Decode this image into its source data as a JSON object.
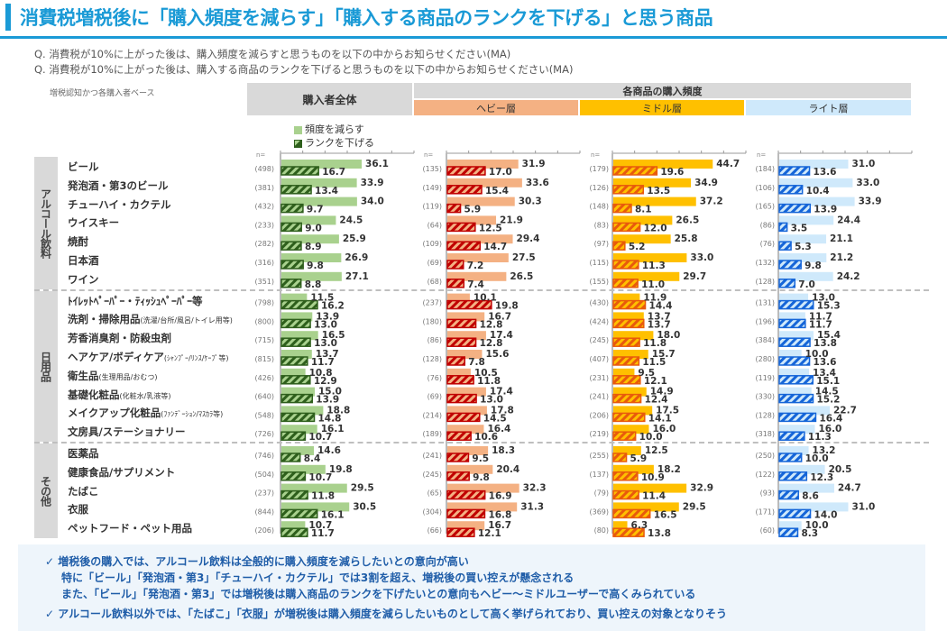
{
  "header": {
    "title": "消費税増税後に「購入頻度を減らす」「購入する商品のランクを下げる」と思う商品",
    "question1": "Q. 消費税が10%に上がった後は、購入頻度を減らすと思うものを以下の中からお知らせください(MA)",
    "question2": "Q. 消費税が10%に上がった後は、購入する商品のランクを下げると思うものを以下の中からお知らせください(MA)",
    "base_note": "増税認知かつ各購入者ベース",
    "overall_header": "購入者全体",
    "freq_header": "各商品の購入頻度",
    "heavy_header": "ヘビー層",
    "middle_header": "ミドル層",
    "light_header": "ライト層",
    "n_label": "n="
  },
  "legend": {
    "freq": "頻度を減らす",
    "rank": "ランクを下げる"
  },
  "sections": [
    {
      "label": "アルコール飲料",
      "start": 0,
      "count": 7
    },
    {
      "label": "日用品",
      "start": 7,
      "count": 8
    },
    {
      "label": "その他",
      "start": 15,
      "count": 5
    }
  ],
  "colors": {
    "title": "#1a9ad6",
    "overall_freq": "#a9d18e",
    "overall_rank": "#2e5f1c",
    "heavy_freq": "#f4b183",
    "heavy_rank": "#c00000",
    "middle_freq": "#ffc000",
    "middle_rank": "#e85a0c",
    "light_freq": "#cfe9fb",
    "light_rank": "#1565d8"
  },
  "chart_data": {
    "type": "bar",
    "title": "消費税増税後に「購入頻度を減らす」「購入する商品のランクを下げる」と思う商品",
    "xlim": [
      0,
      60
    ],
    "xticks": [
      0,
      10,
      20,
      30,
      40,
      50,
      60
    ],
    "unit": "%",
    "categories": [
      "ビール",
      "発泡酒・第3のビール",
      "チューハイ・カクテル",
      "ウイスキー",
      "焼酎",
      "日本酒",
      "ワイン",
      "トイレットペーパー・ティッシュペーパー等",
      "洗剤・掃除用品",
      "芳香消臭剤・防殺虫剤",
      "ヘアケア/ボディケア",
      "衛生品",
      "基礎化粧品",
      "メイクアップ化粧品",
      "文房具/ステーショナリー",
      "医薬品",
      "健康食品/サプリメント",
      "たばこ",
      "衣服",
      "ペットフード・ペット用品"
    ],
    "category_labels": [
      {
        "main": "ビール",
        "sub": ""
      },
      {
        "main": "発泡酒・第3のビール",
        "sub": ""
      },
      {
        "main": "チューハイ・カクテル",
        "sub": ""
      },
      {
        "main": "ウイスキー",
        "sub": ""
      },
      {
        "main": "焼酎",
        "sub": ""
      },
      {
        "main": "日本酒",
        "sub": ""
      },
      {
        "main": "ワイン",
        "sub": ""
      },
      {
        "main": "ﾄｲﾚｯﾄﾍﾟｰﾊﾟｰ・ﾃｨｯｼｭﾍﾟｰﾊﾟｰ等",
        "sub": ""
      },
      {
        "main": "洗剤・掃除用品",
        "sub": "(洗濯/台所/風呂/トイレ用等)"
      },
      {
        "main": "芳香消臭剤・防殺虫剤",
        "sub": ""
      },
      {
        "main": "ヘアケア/ボディケア",
        "sub": "(ｼｬﾝﾌﾟｰ/ﾘﾝｽ/ｹｰﾌﾟ等)"
      },
      {
        "main": "衛生品",
        "sub": "(生理用品/おむつ)"
      },
      {
        "main": "基礎化粧品",
        "sub": "(化粧水/乳液等)"
      },
      {
        "main": "メイクアップ化粧品",
        "sub": "(ﾌｧﾝﾃﾞｰｼｮﾝ/ﾏｽｶﾗ等)"
      },
      {
        "main": "文房具/ステーショナリー",
        "sub": ""
      },
      {
        "main": "医薬品",
        "sub": ""
      },
      {
        "main": "健康食品/サプリメント",
        "sub": ""
      },
      {
        "main": "たばこ",
        "sub": ""
      },
      {
        "main": "衣服",
        "sub": ""
      },
      {
        "main": "ペットフード・ペット用品",
        "sub": ""
      }
    ],
    "panels": [
      {
        "name": "購入者全体",
        "key": "overall",
        "n": [
          498,
          381,
          432,
          233,
          282,
          316,
          351,
          798,
          800,
          715,
          815,
          426,
          640,
          548,
          726,
          746,
          504,
          237,
          844,
          206
        ],
        "series": [
          {
            "name": "頻度を減らす",
            "values": [
              36.1,
              33.9,
              34.0,
              24.5,
              25.9,
              26.9,
              27.1,
              11.5,
              13.9,
              16.5,
              13.7,
              10.8,
              15.0,
              18.8,
              16.1,
              14.6,
              19.8,
              29.5,
              30.5,
              10.7
            ]
          },
          {
            "name": "ランクを下げる",
            "values": [
              16.7,
              13.4,
              9.7,
              9.0,
              8.9,
              9.8,
              8.8,
              16.2,
              13.0,
              13.0,
              11.7,
              12.9,
              13.9,
              14.8,
              10.7,
              8.4,
              10.7,
              11.8,
              16.1,
              11.7
            ]
          }
        ]
      },
      {
        "name": "ヘビー層",
        "key": "heavy",
        "n": [
          135,
          149,
          119,
          64,
          109,
          69,
          68,
          237,
          180,
          86,
          128,
          76,
          69,
          214,
          189,
          241,
          245,
          65,
          304,
          66
        ],
        "series": [
          {
            "name": "頻度を減らす",
            "values": [
              31.9,
              33.6,
              30.3,
              21.9,
              29.4,
              27.5,
              26.5,
              10.1,
              16.7,
              17.4,
              15.6,
              10.5,
              17.4,
              17.8,
              16.4,
              18.3,
              20.4,
              32.3,
              31.3,
              16.7
            ]
          },
          {
            "name": "ランクを下げる",
            "values": [
              17.0,
              15.4,
              5.9,
              12.5,
              14.7,
              7.2,
              7.4,
              19.8,
              12.8,
              12.8,
              7.8,
              11.8,
              13.0,
              14.5,
              10.6,
              9.5,
              9.8,
              16.9,
              16.8,
              12.1
            ]
          }
        ]
      },
      {
        "name": "ミドル層",
        "key": "middle",
        "n": [
          179,
          126,
          148,
          83,
          97,
          115,
          155,
          430,
          424,
          245,
          407,
          231,
          241,
          206,
          219,
          255,
          137,
          79,
          369,
          80
        ],
        "series": [
          {
            "name": "頻度を減らす",
            "values": [
              44.7,
              34.9,
              37.2,
              26.5,
              25.8,
              33.0,
              29.7,
              11.9,
              13.7,
              18.0,
              15.7,
              9.5,
              14.9,
              17.5,
              16.0,
              12.5,
              18.2,
              32.9,
              29.5,
              6.3
            ]
          },
          {
            "name": "ランクを下げる",
            "values": [
              19.6,
              13.5,
              8.1,
              12.0,
              5.2,
              11.3,
              11.0,
              14.4,
              13.7,
              11.8,
              11.5,
              12.1,
              12.4,
              14.1,
              10.0,
              5.9,
              10.9,
              11.4,
              16.5,
              13.8
            ]
          }
        ]
      },
      {
        "name": "ライト層",
        "key": "light",
        "n": [
          184,
          106,
          165,
          86,
          76,
          132,
          128,
          131,
          196,
          384,
          280,
          119,
          330,
          128,
          318,
          250,
          122,
          93,
          171,
          60
        ],
        "series": [
          {
            "name": "頻度を減らす",
            "values": [
              31.0,
              33.0,
              33.9,
              24.4,
              21.1,
              21.2,
              24.2,
              13.0,
              11.7,
              15.4,
              10.0,
              13.4,
              14.5,
              22.7,
              16.0,
              13.2,
              20.5,
              24.7,
              31.0,
              10.0
            ]
          },
          {
            "name": "ランクを下げる",
            "values": [
              13.6,
              10.4,
              13.9,
              3.5,
              5.3,
              9.8,
              7.0,
              15.3,
              11.7,
              13.8,
              13.6,
              15.1,
              15.2,
              16.4,
              11.3,
              10.0,
              12.3,
              8.6,
              14.0,
              8.3
            ]
          }
        ]
      }
    ]
  },
  "summary": {
    "line1": "✓ 増税後の購入では、アルコール飲料は全般的に購入頻度を減らしたいとの意向が高い",
    "line2": "特に「ビール」「発泡酒・第3」「チューハイ・カクテル」では3割を超え、増税後の買い控えが懸念される",
    "line3": "また、「ビール」「発泡酒・第3」では増税後は購入商品のランクを下げたいとの意向もヘビー～ミドルユーザーで高くみられている",
    "line4": "✓ アルコール飲料以外では、「たばこ」「衣服」が増税後は購入頻度を減らしたいものとして高く挙げられており、買い控えの対象となりそう"
  }
}
